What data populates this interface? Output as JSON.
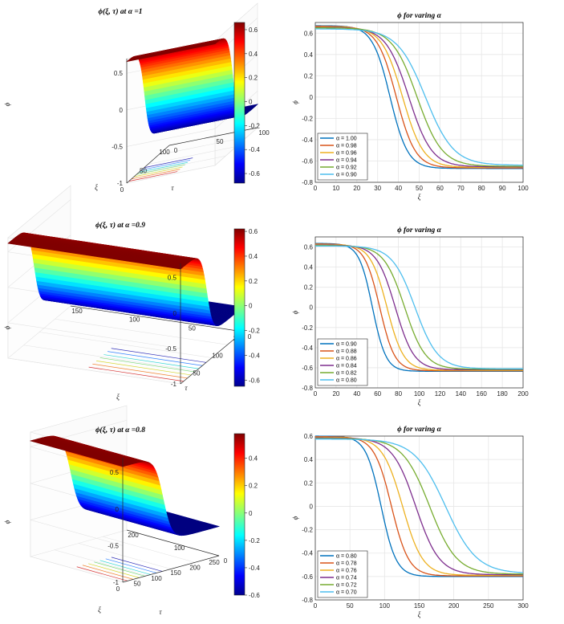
{
  "chart_data": [
    {
      "type": "surface3d",
      "title": "ϕ(ξ, τ) at α =1",
      "alpha": 1,
      "xlabel": "ξ",
      "ylabel": "τ",
      "zlabel": "ϕ",
      "xlim": [
        0,
        100
      ],
      "ylim": [
        0,
        100
      ],
      "zlim": [
        -1,
        0.7
      ],
      "xticks": [
        "0",
        "50",
        "100"
      ],
      "yticks": [
        "0",
        "50",
        "100"
      ],
      "zticks": [
        "-1",
        "-0.5",
        "0",
        "0.5"
      ],
      "colorbar": {
        "min": -0.68,
        "max": 0.66,
        "ticks": [
          "0.6",
          "0.4",
          "0.2",
          "0",
          "-0.2",
          "-0.4",
          "-0.6"
        ],
        "tick_values": [
          0.6,
          0.4,
          0.2,
          0,
          -0.2,
          -0.4,
          -0.6
        ]
      }
    },
    {
      "type": "line",
      "title": "ϕ for varing α",
      "xlabel": "ξ",
      "ylabel": "ϕ",
      "xlim": [
        0,
        100
      ],
      "ylim": [
        -0.8,
        0.7
      ],
      "xticks": [
        "0",
        "10",
        "20",
        "30",
        "40",
        "50",
        "60",
        "70",
        "80",
        "90",
        "100"
      ],
      "yticks": [
        "0.6",
        "0.4",
        "0.2",
        "0",
        "-0.2",
        "-0.4",
        "-0.6",
        "-0.8"
      ],
      "legend": {
        "location": "lower-left"
      },
      "series": [
        {
          "name": "α = 1.00",
          "color": "#0072BD",
          "x0": 36,
          "w": 8.5,
          "A": 0.67
        },
        {
          "name": "α = 0.98",
          "color": "#D95319",
          "x0": 39,
          "w": 9.2,
          "A": 0.665
        },
        {
          "name": "α = 0.96",
          "color": "#EDB120",
          "x0": 42,
          "w": 10,
          "A": 0.66
        },
        {
          "name": "α = 0.94",
          "color": "#7E2F8E",
          "x0": 45,
          "w": 11,
          "A": 0.655
        },
        {
          "name": "α = 0.92",
          "color": "#77AC30",
          "x0": 49,
          "w": 12,
          "A": 0.65
        },
        {
          "name": "α = 0.90",
          "color": "#4DBEEE",
          "x0": 53,
          "w": 13.5,
          "A": 0.64
        }
      ]
    },
    {
      "type": "surface3d",
      "title": "ϕ(ξ, τ) at α =0.9",
      "alpha": 0.9,
      "xlabel": "ξ",
      "ylabel": "τ",
      "zlabel": "ϕ",
      "xlim": [
        0,
        150
      ],
      "ylim": [
        0,
        150
      ],
      "zlim": [
        -1,
        0.7
      ],
      "xticks": [
        "50",
        "100",
        "150"
      ],
      "yticks": [
        "0",
        "50",
        "100",
        "150"
      ],
      "zticks": [
        "-1",
        "-0.5",
        "0",
        "0.5"
      ],
      "colorbar": {
        "min": -0.65,
        "max": 0.62,
        "ticks": [
          "0.6",
          "0.4",
          "0.2",
          "0",
          "-0.2",
          "-0.4",
          "-0.6"
        ],
        "tick_values": [
          0.6,
          0.4,
          0.2,
          0,
          -0.2,
          -0.4,
          -0.6
        ]
      }
    },
    {
      "type": "line",
      "title": "ϕ for varing α",
      "xlabel": "ξ",
      "ylabel": "ϕ",
      "xlim": [
        0,
        200
      ],
      "ylim": [
        -0.8,
        0.7
      ],
      "xticks": [
        "0",
        "20",
        "40",
        "60",
        "80",
        "100",
        "120",
        "140",
        "160",
        "180",
        "200"
      ],
      "yticks": [
        "0.6",
        "0.4",
        "0.2",
        "0",
        "-0.2",
        "-0.4",
        "-0.6",
        "-0.8"
      ],
      "legend": {
        "location": "lower-left"
      },
      "series": [
        {
          "name": "α = 0.90",
          "color": "#0072BD",
          "x0": 55,
          "w": 13,
          "A": 0.635
        },
        {
          "name": "α = 0.88",
          "color": "#D95319",
          "x0": 62,
          "w": 14.5,
          "A": 0.63
        },
        {
          "name": "α = 0.86",
          "color": "#EDB120",
          "x0": 69,
          "w": 16,
          "A": 0.625
        },
        {
          "name": "α = 0.84",
          "color": "#7E2F8E",
          "x0": 77,
          "w": 18,
          "A": 0.62
        },
        {
          "name": "α = 0.82",
          "color": "#77AC30",
          "x0": 86,
          "w": 20,
          "A": 0.615
        },
        {
          "name": "α = 0.80",
          "color": "#4DBEEE",
          "x0": 96,
          "w": 22,
          "A": 0.61
        }
      ]
    },
    {
      "type": "surface3d",
      "title": "ϕ(ξ, τ) at α =0.8",
      "alpha": 0.8,
      "xlabel": "ξ",
      "ylabel": "τ",
      "zlabel": "ϕ",
      "xlim": [
        0,
        250
      ],
      "ylim": [
        0,
        200
      ],
      "zlim": [
        -1,
        0.7
      ],
      "xticks": [
        "0",
        "50",
        "100",
        "150",
        "200",
        "250"
      ],
      "yticks": [
        "0",
        "100",
        "200"
      ],
      "zticks": [
        "-1",
        "-0.5",
        "0",
        "0.5"
      ],
      "colorbar": {
        "min": -0.6,
        "max": 0.58,
        "ticks": [
          "0.4",
          "0.2",
          "0",
          "-0.2",
          "-0.4",
          "-0.6"
        ],
        "tick_values": [
          0.4,
          0.2,
          0,
          -0.2,
          -0.4,
          -0.6
        ]
      }
    },
    {
      "type": "line",
      "title": "ϕ for varing α",
      "xlabel": "ξ",
      "ylabel": "ϕ",
      "xlim": [
        0,
        300
      ],
      "ylim": [
        -0.8,
        0.6
      ],
      "xticks": [
        "0",
        "50",
        "100",
        "150",
        "200",
        "250",
        "300"
      ],
      "yticks": [
        "0.6",
        "0.4",
        "0.2",
        "0",
        "-0.2",
        "-0.4",
        "-0.6",
        "-0.8"
      ],
      "legend": {
        "location": "lower-left"
      },
      "series": [
        {
          "name": "α = 0.80",
          "color": "#0072BD",
          "x0": 95,
          "w": 22,
          "A": 0.6
        },
        {
          "name": "α = 0.78",
          "color": "#D95319",
          "x0": 110,
          "w": 25,
          "A": 0.595
        },
        {
          "name": "α = 0.76",
          "color": "#EDB120",
          "x0": 126,
          "w": 29,
          "A": 0.59
        },
        {
          "name": "α = 0.74",
          "color": "#7E2F8E",
          "x0": 145,
          "w": 34,
          "A": 0.585
        },
        {
          "name": "α = 0.72",
          "color": "#77AC30",
          "x0": 165,
          "w": 39,
          "A": 0.58
        },
        {
          "name": "α = 0.70",
          "color": "#4DBEEE",
          "x0": 188,
          "w": 45,
          "A": 0.575
        }
      ]
    }
  ]
}
